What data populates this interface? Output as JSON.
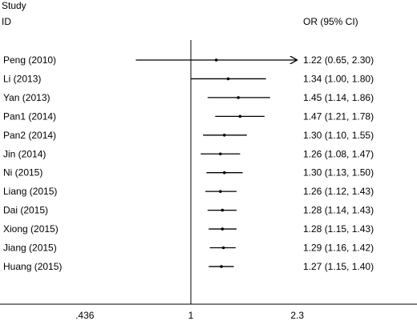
{
  "chart_data": {
    "type": "forest",
    "header": {
      "study_label": "Study",
      "id_label": "ID",
      "estimate_label": "OR (95% CI)"
    },
    "x_scale": "log",
    "null_value": 1,
    "x_ticks": [
      {
        "value": 0.436,
        "label": ".436"
      },
      {
        "value": 1,
        "label": "1"
      },
      {
        "value": 2.3,
        "label": "2.3"
      }
    ],
    "xlim": [
      0.436,
      2.3
    ],
    "studies": [
      {
        "id": "Peng (2010)",
        "or": 1.22,
        "lo": 0.65,
        "hi": 2.3,
        "label": "1.22 (0.65, 2.30)",
        "arrow_right": true
      },
      {
        "id": "Li (2013)",
        "or": 1.34,
        "lo": 1.0,
        "hi": 1.8,
        "label": "1.34 (1.00, 1.80)"
      },
      {
        "id": "Yan (2013)",
        "or": 1.45,
        "lo": 1.14,
        "hi": 1.86,
        "label": "1.45 (1.14, 1.86)"
      },
      {
        "id": "Pan1 (2014)",
        "or": 1.47,
        "lo": 1.21,
        "hi": 1.78,
        "label": "1.47 (1.21, 1.78)"
      },
      {
        "id": "Pan2 (2014)",
        "or": 1.3,
        "lo": 1.1,
        "hi": 1.55,
        "label": "1.30 (1.10, 1.55)"
      },
      {
        "id": "Jin (2014)",
        "or": 1.26,
        "lo": 1.08,
        "hi": 1.47,
        "label": "1.26 (1.08, 1.47)"
      },
      {
        "id": "Ni (2015)",
        "or": 1.3,
        "lo": 1.13,
        "hi": 1.5,
        "label": "1.30 (1.13, 1.50)"
      },
      {
        "id": "Liang (2015)",
        "or": 1.26,
        "lo": 1.12,
        "hi": 1.43,
        "label": "1.26 (1.12, 1.43)"
      },
      {
        "id": "Dai (2015)",
        "or": 1.28,
        "lo": 1.14,
        "hi": 1.43,
        "label": "1.28 (1.14, 1.43)"
      },
      {
        "id": "Xiong (2015)",
        "or": 1.28,
        "lo": 1.15,
        "hi": 1.43,
        "label": "1.28 (1.15, 1.43)"
      },
      {
        "id": "Jiang (2015)",
        "or": 1.29,
        "lo": 1.16,
        "hi": 1.42,
        "label": "1.29 (1.16, 1.42)"
      },
      {
        "id": "Huang (2015)",
        "or": 1.27,
        "lo": 1.15,
        "hi": 1.4,
        "label": "1.27 (1.15, 1.40)"
      }
    ]
  }
}
